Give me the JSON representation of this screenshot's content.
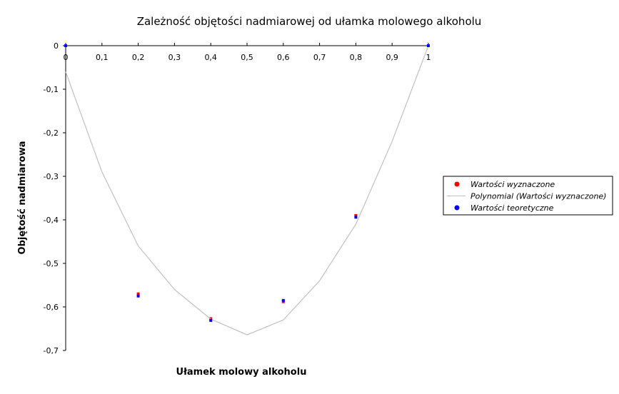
{
  "chart_data": {
    "type": "scatter",
    "title": "Zależność objętości nadmiarowej od ułamka molowego alkoholu",
    "x_label": "Ułamek molowy alkoholu",
    "y_label": "Objętość nadmiarowa",
    "xlim": [
      0,
      1
    ],
    "ylim": [
      -0.7,
      0
    ],
    "xticks": [
      0,
      {
        "value": 0.1,
        "label": "0,1"
      },
      {
        "value": 0.2,
        "label": "0,2"
      },
      {
        "value": 0.3,
        "label": "0,3"
      },
      {
        "value": 0.4,
        "label": "0,4"
      },
      {
        "value": 0.5,
        "label": "0,5"
      },
      {
        "value": 0.6,
        "label": "0,6"
      },
      {
        "value": 0.7,
        "label": "0,7"
      },
      {
        "value": 0.8,
        "label": "0,8"
      },
      {
        "value": 0.9,
        "label": "0,9"
      },
      1
    ],
    "yticks": [
      0,
      {
        "value": -0.1,
        "label": "-0,1"
      },
      {
        "value": -0.2,
        "label": "-0,2"
      },
      {
        "value": -0.3,
        "label": "-0,3"
      },
      {
        "value": -0.4,
        "label": "-0,4"
      },
      {
        "value": -0.5,
        "label": "-0,5"
      },
      {
        "value": -0.6,
        "label": "-0,6"
      },
      {
        "value": -0.7,
        "label": "-0,7"
      }
    ],
    "legend": "right",
    "series": [
      {
        "name": "Wartości wyznaczone",
        "style": "markers",
        "color": "#ff0000",
        "x": [
          0,
          0.2,
          0.4,
          0.6,
          0.8,
          1
        ],
        "values": [
          0,
          -0.57,
          -0.627,
          -0.588,
          -0.39,
          0
        ]
      },
      {
        "name": "Polynomial (Wartości wyznaczone)",
        "style": "line",
        "color": "#c0c0c0",
        "x": [
          0,
          0.1,
          0.2,
          0.3,
          0.4,
          0.5,
          0.6,
          0.7,
          0.8,
          0.9,
          1
        ],
        "values": [
          -0.06,
          -0.29,
          -0.46,
          -0.56,
          -0.628,
          -0.664,
          -0.63,
          -0.54,
          -0.41,
          -0.22,
          0
        ]
      },
      {
        "name": "Wartości teoretyczne",
        "style": "markers",
        "color": "#0000ff",
        "x": [
          0,
          0.2,
          0.4,
          0.6,
          0.8,
          1
        ],
        "values": [
          0,
          -0.575,
          -0.631,
          -0.585,
          -0.394,
          0
        ]
      }
    ]
  }
}
